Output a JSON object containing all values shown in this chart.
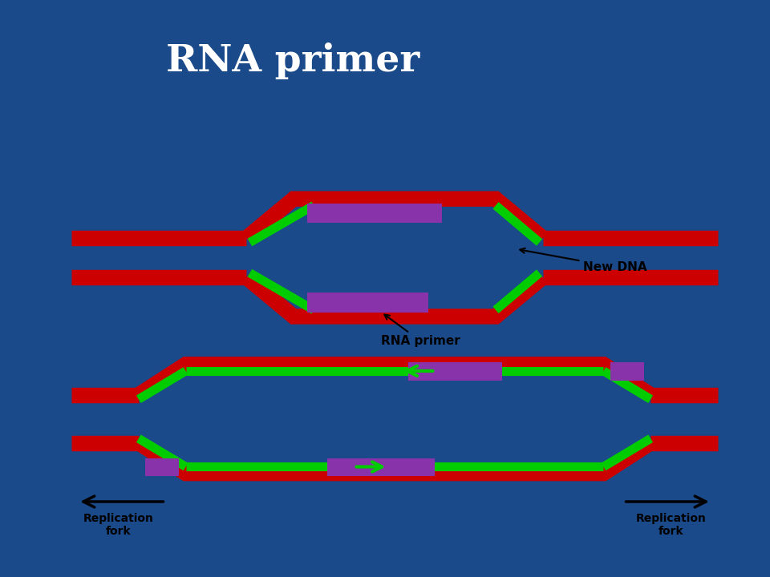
{
  "title": "RNA primer",
  "title_color": "white",
  "title_fontsize": 34,
  "background_color": "#1a4a8a",
  "panel_bg": "white",
  "red_color": "#cc0000",
  "green_color": "#00cc00",
  "purple_color": "#8833aa",
  "black_color": "#000000",
  "label_rna_primer": "RNA primer",
  "label_new_dna": "New DNA",
  "label_rep_fork": "Replication\nfork"
}
